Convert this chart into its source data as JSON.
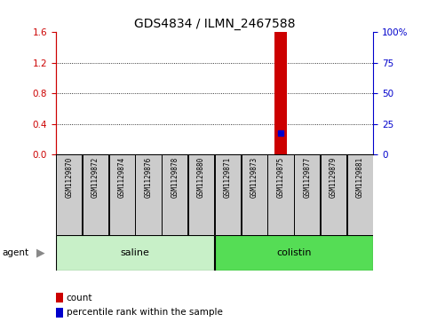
{
  "title": "GDS4834 / ILMN_2467588",
  "samples": [
    "GSM1129870",
    "GSM1129872",
    "GSM1129874",
    "GSM1129876",
    "GSM1129878",
    "GSM1129880",
    "GSM1129871",
    "GSM1129873",
    "GSM1129875",
    "GSM1129877",
    "GSM1129879",
    "GSM1129881"
  ],
  "groups": [
    {
      "label": "saline",
      "start": 0,
      "end": 5,
      "color": "#c8f0c8"
    },
    {
      "label": "colistin",
      "start": 6,
      "end": 11,
      "color": "#55dd55"
    }
  ],
  "red_bar_index": 8,
  "red_bar_value": 1.6,
  "blue_marker_index": 8,
  "blue_marker_value": 0.28,
  "left_ylim": [
    0,
    1.6
  ],
  "right_ylim": [
    0,
    100
  ],
  "left_yticks": [
    0,
    0.4,
    0.8,
    1.2,
    1.6
  ],
  "right_yticks": [
    0,
    25,
    50,
    75,
    100
  ],
  "right_yticklabels": [
    "0",
    "25",
    "50",
    "75",
    "100%"
  ],
  "left_ycolor": "#cc0000",
  "right_ycolor": "#0000cc",
  "bar_color": "#cc0000",
  "marker_color": "#0000cc",
  "sample_box_color": "#cccccc",
  "agent_label": "agent",
  "legend_items": [
    {
      "color": "#cc0000",
      "label": "count"
    },
    {
      "color": "#0000cc",
      "label": "percentile rank within the sample"
    }
  ],
  "background_color": "#ffffff"
}
